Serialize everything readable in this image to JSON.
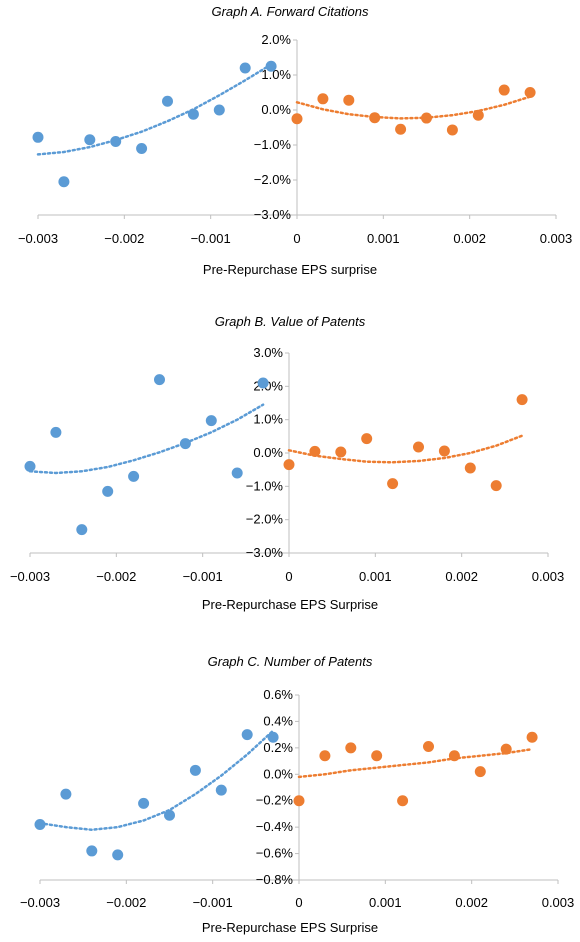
{
  "colors": {
    "left": "#5b9bd5",
    "right": "#ed7d31",
    "axis": "#bfbfbf"
  },
  "chart_data": [
    {
      "type": "scatter",
      "title": "Graph A. Forward Citations",
      "xlabel": "Pre-Repurchase EPS surprise",
      "ylabel": "",
      "xlim": [
        -0.003,
        0.003
      ],
      "ylim": [
        -3.0,
        2.0
      ],
      "x_ticks": [
        "−0.003",
        "−0.002",
        "−0.001",
        "0",
        "0.001",
        "0.002",
        "0.003"
      ],
      "y_ticks": [
        "2.0%",
        "1.0%",
        "0.0%",
        "−1.0%",
        "−2.0%",
        "−3.0%"
      ],
      "trendline": "polynomial (dotted)",
      "series": [
        {
          "x": [
            -0.003,
            -0.0027,
            -0.0024,
            -0.0021,
            -0.0018,
            -0.0015,
            -0.0012,
            -0.0009,
            -0.0006,
            -0.0003
          ],
          "y": [
            -0.78,
            -2.05,
            -0.85,
            -0.9,
            -1.1,
            0.25,
            -0.12,
            0.0,
            1.2,
            1.25
          ],
          "trend": [
            -1.27,
            -1.2,
            -1.06,
            -0.86,
            -0.62,
            -0.32,
            0.02,
            0.42,
            0.85,
            1.3
          ]
        },
        {
          "x": [
            0.0,
            0.0003,
            0.0006,
            0.0009,
            0.0012,
            0.0015,
            0.0018,
            0.0021,
            0.0024,
            0.0027
          ],
          "y": [
            -0.25,
            0.32,
            0.28,
            -0.22,
            -0.55,
            -0.23,
            -0.57,
            -0.15,
            0.57,
            0.5
          ],
          "trend": [
            0.22,
            0.02,
            -0.12,
            -0.2,
            -0.24,
            -0.22,
            -0.15,
            -0.03,
            0.15,
            0.38
          ]
        }
      ]
    },
    {
      "type": "scatter",
      "title": "Graph B. Value of Patents",
      "xlabel": "Pre-Repurchase EPS Surprise",
      "ylabel": "",
      "xlim": [
        -0.003,
        0.003
      ],
      "ylim": [
        -3.0,
        3.0
      ],
      "x_ticks": [
        "−0.003",
        "−0.002",
        "−0.001",
        "0",
        "0.001",
        "0.002",
        "0.003"
      ],
      "y_ticks": [
        "3.0%",
        "2.0%",
        "1.0%",
        "0.0%",
        "−1.0%",
        "−2.0%",
        "−3.0%"
      ],
      "trendline": "polynomial (dotted)",
      "series": [
        {
          "x": [
            -0.003,
            -0.0027,
            -0.0024,
            -0.0021,
            -0.0018,
            -0.0015,
            -0.0012,
            -0.0009,
            -0.0006,
            -0.0003
          ],
          "y": [
            -0.4,
            0.62,
            -2.3,
            -1.15,
            -0.7,
            2.2,
            0.28,
            0.97,
            -0.6,
            2.1
          ],
          "trend": [
            -0.55,
            -0.6,
            -0.55,
            -0.42,
            -0.22,
            0.02,
            0.3,
            0.62,
            1.0,
            1.45
          ]
        },
        {
          "x": [
            0.0,
            0.0003,
            0.0006,
            0.0009,
            0.0012,
            0.0015,
            0.0018,
            0.0021,
            0.0024,
            0.0027
          ],
          "y": [
            -0.35,
            0.05,
            0.03,
            0.43,
            -0.92,
            0.18,
            0.06,
            -0.45,
            -0.98,
            1.6
          ],
          "trend": [
            0.08,
            -0.08,
            -0.18,
            -0.26,
            -0.28,
            -0.24,
            -0.15,
            0.0,
            0.22,
            0.52
          ]
        }
      ]
    },
    {
      "type": "scatter",
      "title": "Graph C. Number of Patents",
      "xlabel": "Pre-Repurchase EPS Surprise",
      "ylabel": "",
      "xlim": [
        -0.003,
        0.003
      ],
      "ylim": [
        -0.8,
        0.6
      ],
      "x_ticks": [
        "−0.003",
        "−0.002",
        "−0.001",
        "0",
        "0.001",
        "0.002",
        "0.003"
      ],
      "y_ticks": [
        "0.6%",
        "0.4%",
        "0.2%",
        "0.0%",
        "−0.2%",
        "−0.4%",
        "−0.6%",
        "−0.8%"
      ],
      "trendline": "polynomial / linear (dotted)",
      "series": [
        {
          "x": [
            -0.003,
            -0.0027,
            -0.0024,
            -0.0021,
            -0.0018,
            -0.0015,
            -0.0012,
            -0.0009,
            -0.0006,
            -0.0003
          ],
          "y": [
            -0.38,
            -0.15,
            -0.58,
            -0.61,
            -0.22,
            -0.31,
            0.03,
            -0.12,
            0.3,
            0.28
          ],
          "trend": [
            -0.37,
            -0.4,
            -0.42,
            -0.4,
            -0.35,
            -0.27,
            -0.15,
            -0.01,
            0.15,
            0.33
          ]
        },
        {
          "x": [
            0.0,
            0.0003,
            0.0006,
            0.0009,
            0.0012,
            0.0015,
            0.0018,
            0.0021,
            0.0024,
            0.0027
          ],
          "y": [
            -0.2,
            0.14,
            0.2,
            0.14,
            -0.2,
            0.21,
            0.14,
            0.02,
            0.19,
            0.28
          ],
          "trend": [
            -0.02,
            0.0,
            0.03,
            0.05,
            0.07,
            0.09,
            0.12,
            0.14,
            0.16,
            0.19
          ]
        }
      ]
    }
  ]
}
